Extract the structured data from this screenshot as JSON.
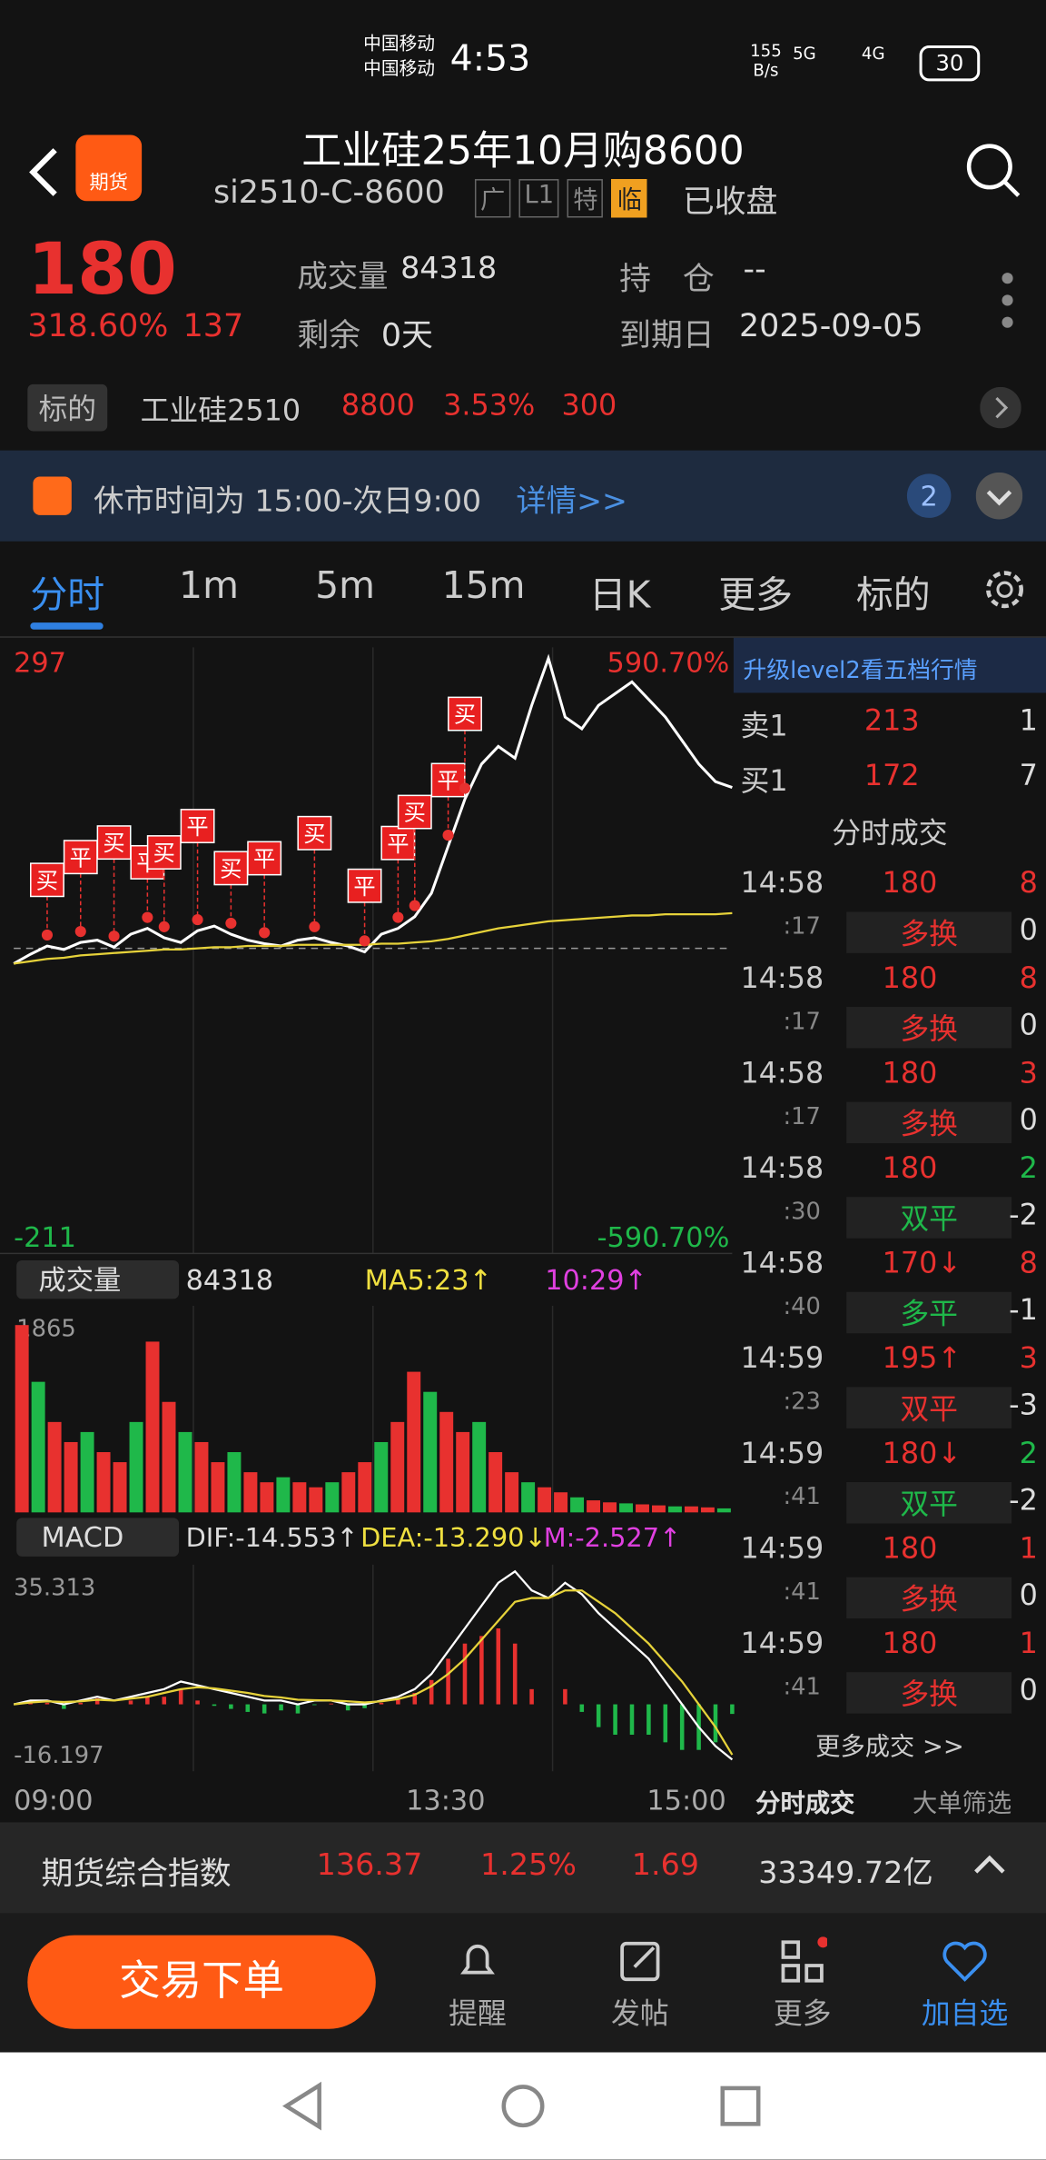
{
  "status_bar": {
    "carrier1": "中国移动",
    "carrier2": "中国移动",
    "time": "4:53",
    "speed": "155",
    "speed_unit": "B/s",
    "net1": "5G",
    "net2": "4G",
    "battery": "30"
  },
  "header": {
    "logo": "期货",
    "title": "工业硅25年10月购8600",
    "code": "si2510-C-8600",
    "tags": [
      "广",
      "L1",
      "特",
      "临"
    ],
    "status": "已收盘"
  },
  "quote": {
    "price": "180",
    "change_pct": "318.60%",
    "change": "137",
    "volume_label": "成交量",
    "volume": "84318",
    "remain_label": "剩余",
    "remain": "0天",
    "position_label": "持　仓",
    "position": "--",
    "expiry_label": "到期日",
    "expiry": "2025-09-05"
  },
  "underlying": {
    "label": "标的",
    "name": "工业硅2510",
    "price": "8800",
    "pct": "3.53%",
    "change": "300"
  },
  "notice": {
    "text": "休市时间为 15:00-次日9:00",
    "link": "详情>>",
    "count": "2"
  },
  "tabs": [
    "分时",
    "1m",
    "5m",
    "15m",
    "日K",
    "更多",
    "标的"
  ],
  "chart_data": [
    {
      "type": "line",
      "ylim": [
        -211,
        297
      ],
      "pct_top": "590.70%",
      "pct_bottom": "-590.70%",
      "prev_close": 43,
      "x": [
        0,
        1,
        2,
        3,
        4,
        5,
        6,
        7,
        8,
        9,
        10,
        11,
        12,
        13,
        14,
        15,
        16,
        17,
        18,
        19,
        20,
        21,
        22,
        23,
        24,
        25,
        26,
        27,
        28,
        29,
        30,
        31,
        32,
        33,
        34,
        35,
        36,
        37,
        38,
        39,
        40,
        41,
        42,
        43
      ],
      "series": [
        {
          "color": "#ffffff",
          "values": [
            30,
            38,
            45,
            42,
            48,
            50,
            44,
            55,
            60,
            52,
            48,
            58,
            62,
            55,
            50,
            47,
            45,
            50,
            52,
            48,
            45,
            40,
            55,
            60,
            70,
            90,
            130,
            170,
            200,
            215,
            205,
            250,
            290,
            240,
            230,
            250,
            260,
            270,
            255,
            240,
            220,
            200,
            185,
            180
          ]
        },
        {
          "color": "#e6d23a",
          "values": [
            30,
            32,
            34,
            35,
            37,
            38,
            39,
            40,
            41,
            42,
            42,
            43,
            44,
            44,
            45,
            45,
            45,
            46,
            46,
            46,
            46,
            46,
            47,
            47,
            48,
            49,
            51,
            54,
            57,
            60,
            62,
            64,
            66,
            67,
            68,
            69,
            70,
            71,
            71,
            72,
            72,
            72,
            72,
            73
          ]
        }
      ],
      "markers": [
        {
          "label": "买",
          "x": 2
        },
        {
          "label": "平",
          "x": 4
        },
        {
          "label": "买",
          "x": 6
        },
        {
          "label": "平",
          "x": 8
        },
        {
          "label": "买",
          "x": 9
        },
        {
          "label": "平",
          "x": 11
        },
        {
          "label": "买",
          "x": 13
        },
        {
          "label": "平",
          "x": 15
        },
        {
          "label": "买",
          "x": 18
        },
        {
          "label": "平",
          "x": 21
        },
        {
          "label": "平",
          "x": 23
        },
        {
          "label": "买",
          "x": 24
        },
        {
          "label": "平",
          "x": 26
        },
        {
          "label": "买",
          "x": 27
        }
      ],
      "xlabels": [
        "09:00",
        "13:30",
        "15:00"
      ]
    },
    {
      "type": "bar",
      "label": "成交量",
      "value": "84318",
      "ma5": "MA5:23↑",
      "ma10": "10:29↑",
      "ylim": [
        0,
        1865
      ],
      "values": [
        1865,
        1300,
        900,
        700,
        800,
        600,
        500,
        900,
        1700,
        1100,
        800,
        700,
        500,
        600,
        400,
        300,
        350,
        300,
        250,
        300,
        400,
        500,
        700,
        900,
        1400,
        1200,
        1000,
        800,
        900,
        600,
        400,
        300,
        250,
        200,
        150,
        120,
        100,
        90,
        80,
        70,
        60,
        60,
        50,
        40
      ]
    },
    {
      "type": "macd",
      "label": "MACD",
      "dif_label": "DIF:-14.553↑",
      "dea_label": "DEA:-13.290↓",
      "m_label": "M:-2.527↑",
      "ylim": [
        -16.197,
        35.313
      ],
      "series": [
        {
          "name": "DIF",
          "color": "#ffffff",
          "values": [
            0,
            1,
            1,
            0,
            1,
            2,
            1,
            2,
            3,
            4,
            6,
            5,
            4,
            3,
            2,
            1,
            1,
            0,
            1,
            1,
            0,
            0,
            1,
            2,
            4,
            8,
            14,
            20,
            26,
            32,
            35,
            30,
            28,
            32,
            29,
            24,
            20,
            16,
            12,
            6,
            0,
            -6,
            -11,
            -14.553
          ]
        },
        {
          "name": "DEA",
          "color": "#e6d23a",
          "values": [
            0,
            0.5,
            0.8,
            0.6,
            0.8,
            1.2,
            1,
            1.5,
            2,
            3,
            4,
            4.5,
            4.2,
            3.6,
            3,
            2.2,
            1.8,
            1.2,
            1.1,
            1,
            0.8,
            0.5,
            0.8,
            1.4,
            2.5,
            4.8,
            8,
            12,
            17,
            22,
            27,
            28,
            28,
            30,
            30,
            27,
            24,
            20,
            16,
            11,
            6,
            0,
            -6,
            -13.29
          ]
        },
        {
          "name": "M",
          "values": [
            0,
            1,
            0.4,
            -1.2,
            0.4,
            1.6,
            0,
            1,
            2,
            2,
            4,
            1,
            -0.4,
            -1.2,
            -2,
            -2.4,
            -1.6,
            -2.4,
            -0.2,
            0.2,
            -1.6,
            -1,
            0.4,
            1.2,
            3,
            6.4,
            12,
            16,
            18,
            20,
            16,
            4,
            0,
            4,
            -2,
            -6,
            -8,
            -8,
            -8,
            -10,
            -12,
            -12,
            -10,
            -2.527
          ]
        }
      ]
    }
  ],
  "side_panel": {
    "upgrade": "升级level2看五档行情",
    "book": [
      [
        "卖1",
        "213",
        "1"
      ],
      [
        "买1",
        "172",
        "7"
      ]
    ],
    "title": "分时成交",
    "trades": [
      {
        "time": "14:58",
        "sec": ":17",
        "price": "180",
        "vol": "8",
        "type": "多换",
        "oi": "0",
        "price_color": "#e8312f",
        "vol_color": "#e8312f",
        "type_color": "#e8312f"
      },
      {
        "time": "14:58",
        "sec": ":17",
        "price": "180",
        "vol": "8",
        "type": "多换",
        "oi": "0",
        "price_color": "#e8312f",
        "vol_color": "#e8312f",
        "type_color": "#e8312f"
      },
      {
        "time": "14:58",
        "sec": ":17",
        "price": "180",
        "vol": "3",
        "type": "多换",
        "oi": "0",
        "price_color": "#e8312f",
        "vol_color": "#e8312f",
        "type_color": "#e8312f"
      },
      {
        "time": "14:58",
        "sec": ":30",
        "price": "180",
        "vol": "2",
        "type": "双平",
        "oi": "-2",
        "price_color": "#e8312f",
        "vol_color": "#1fb84a",
        "type_color": "#1fb84a"
      },
      {
        "time": "14:58",
        "sec": ":40",
        "price": "170↓",
        "vol": "8",
        "type": "多平",
        "oi": "-1",
        "price_color": "#e8312f",
        "vol_color": "#e8312f",
        "type_color": "#1fb84a"
      },
      {
        "time": "14:59",
        "sec": ":23",
        "price": "195↑",
        "vol": "3",
        "type": "双平",
        "oi": "-3",
        "price_color": "#e8312f",
        "vol_color": "#e8312f",
        "type_color": "#e8312f"
      },
      {
        "time": "14:59",
        "sec": ":41",
        "price": "180↓",
        "vol": "2",
        "type": "双平",
        "oi": "-2",
        "price_color": "#e8312f",
        "vol_color": "#1fb84a",
        "type_color": "#1fb84a"
      },
      {
        "time": "14:59",
        "sec": ":41",
        "price": "180",
        "vol": "1",
        "type": "多换",
        "oi": "0",
        "price_color": "#e8312f",
        "vol_color": "#e8312f",
        "type_color": "#e8312f"
      },
      {
        "time": "14:59",
        "sec": ":41",
        "price": "180",
        "vol": "1",
        "type": "多换",
        "oi": "0",
        "price_color": "#e8312f",
        "vol_color": "#e8312f",
        "type_color": "#e8312f"
      }
    ],
    "more": "更多成交 >>",
    "tab1": "分时成交",
    "tab2": "大单筛选"
  },
  "index_bar": {
    "name": "期货综合指数",
    "value": "136.37",
    "pct": "1.25%",
    "change": "1.69",
    "amount": "33349.72亿"
  },
  "nav": {
    "trade": "交易下单",
    "items": [
      "提醒",
      "发帖",
      "更多",
      "加自选"
    ]
  }
}
